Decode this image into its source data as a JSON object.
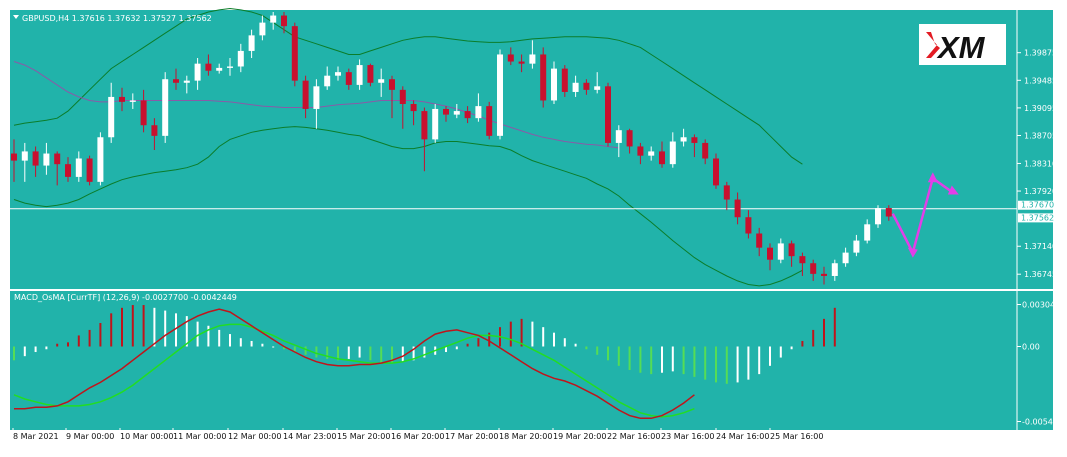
{
  "header": {
    "symbol_info": "GBPUSD,H4  1.37616 1.37632 1.37527 1.37562",
    "indicator_info": "MACD_OsMA [CurrTF] (12,26,9) -0.0027700 -0.0042449"
  },
  "brand": {
    "logo_text": "XM",
    "logo_color": "#e31b23"
  },
  "colors": {
    "background": "#21b3aa",
    "bull_candle": "#ffffff",
    "bear_candle": "#c8102e",
    "bollinger": "#0b7d2a",
    "moving_average": "#8a5aa8",
    "macd_line": "#c0141b",
    "signal_line": "#22dd22",
    "histogram_positive_rising": "#c0141b",
    "histogram_positive_falling": "#ffffff",
    "histogram_negative_falling": "#55dd55",
    "histogram_negative_rising": "#ffffff",
    "arrow": "#e23ee8"
  },
  "chart_data": [
    {
      "type": "candlestick",
      "symbol": "GBPUSD",
      "timeframe": "H4",
      "ylim": [
        1.3655,
        1.4045
      ],
      "y_ticks": [
        "1.39875",
        "1.39485",
        "1.39095",
        "1.38705",
        "1.38310",
        "1.37920",
        "1.37140",
        "1.36745"
      ],
      "price_tags": [
        "1.37670",
        "1.37562"
      ],
      "current_price_line": 1.3767,
      "x_ticks": [
        "8 Mar 2021",
        "9 Mar 00:00",
        "10 Mar 00:00",
        "11 Mar 00:00",
        "12 Mar 00:00",
        "14 Mar 23:00",
        "15 Mar 20:00",
        "16 Mar 20:00",
        "17 Mar 20:00",
        "18 Mar 20:00",
        "19 Mar 20:00",
        "22 Mar 16:00",
        "23 Mar 16:00",
        "24 Mar 16:00",
        "25 Mar 16:00"
      ],
      "candles": [
        [
          1.3845,
          1.3835,
          1.3865,
          1.3805
        ],
        [
          1.3835,
          1.3848,
          1.386,
          1.3805
        ],
        [
          1.3848,
          1.3828,
          1.3855,
          1.3812
        ],
        [
          1.3828,
          1.3845,
          1.386,
          1.3815
        ],
        [
          1.3845,
          1.383,
          1.3848,
          1.38
        ],
        [
          1.383,
          1.3812,
          1.384,
          1.3805
        ],
        [
          1.3812,
          1.3838,
          1.3848,
          1.3805
        ],
        [
          1.3838,
          1.3805,
          1.3842,
          1.38
        ],
        [
          1.3805,
          1.3868,
          1.3875,
          1.38
        ],
        [
          1.3868,
          1.3925,
          1.3945,
          1.386
        ],
        [
          1.3925,
          1.3918,
          1.3938,
          1.3905
        ],
        [
          1.3918,
          1.392,
          1.393,
          1.3908
        ],
        [
          1.392,
          1.3885,
          1.3935,
          1.3875
        ],
        [
          1.3885,
          1.387,
          1.3895,
          1.385
        ],
        [
          1.387,
          1.395,
          1.396,
          1.386
        ],
        [
          1.395,
          1.3945,
          1.3965,
          1.3935
        ],
        [
          1.3945,
          1.3948,
          1.3955,
          1.393
        ],
        [
          1.3948,
          1.3972,
          1.398,
          1.3935
        ],
        [
          1.3972,
          1.3962,
          1.3985,
          1.3955
        ],
        [
          1.3962,
          1.3966,
          1.3972,
          1.3958
        ],
        [
          1.3966,
          1.3968,
          1.398,
          1.3955
        ],
        [
          1.3968,
          1.399,
          1.4,
          1.396
        ],
        [
          1.399,
          1.4012,
          1.402,
          1.398
        ],
        [
          1.4012,
          1.403,
          1.404,
          1.4005
        ],
        [
          1.403,
          1.404,
          1.4045,
          1.402
        ],
        [
          1.404,
          1.4025,
          1.4045,
          1.4015
        ],
        [
          1.4025,
          1.3948,
          1.403,
          1.394
        ],
        [
          1.3948,
          1.3908,
          1.3955,
          1.3895
        ],
        [
          1.3908,
          1.394,
          1.395,
          1.388
        ],
        [
          1.394,
          1.3955,
          1.3968,
          1.3935
        ],
        [
          1.3955,
          1.396,
          1.3968,
          1.3948
        ],
        [
          1.396,
          1.3942,
          1.3965,
          1.3935
        ],
        [
          1.3942,
          1.397,
          1.3978,
          1.3935
        ],
        [
          1.397,
          1.3945,
          1.3972,
          1.394
        ],
        [
          1.3945,
          1.395,
          1.3965,
          1.3925
        ],
        [
          1.395,
          1.3935,
          1.3955,
          1.3895
        ],
        [
          1.3935,
          1.3915,
          1.394,
          1.388
        ],
        [
          1.3915,
          1.3905,
          1.392,
          1.3885
        ],
        [
          1.3905,
          1.3865,
          1.391,
          1.382
        ],
        [
          1.3865,
          1.3908,
          1.3915,
          1.386
        ],
        [
          1.3908,
          1.39,
          1.3912,
          1.389
        ],
        [
          1.39,
          1.3905,
          1.3915,
          1.3895
        ],
        [
          1.3905,
          1.3895,
          1.3912,
          1.3888
        ],
        [
          1.3895,
          1.3912,
          1.393,
          1.389
        ],
        [
          1.3912,
          1.387,
          1.3918,
          1.3865
        ],
        [
          1.387,
          1.3985,
          1.3992,
          1.3865
        ],
        [
          1.3985,
          1.3975,
          1.3995,
          1.397
        ],
        [
          1.3975,
          1.3972,
          1.3985,
          1.396
        ],
        [
          1.3972,
          1.3985,
          1.4005,
          1.3965
        ],
        [
          1.3985,
          1.392,
          1.3995,
          1.391
        ],
        [
          1.392,
          1.3965,
          1.3975,
          1.3915
        ],
        [
          1.3965,
          1.3932,
          1.397,
          1.3925
        ],
        [
          1.3932,
          1.3945,
          1.3955,
          1.3925
        ],
        [
          1.3945,
          1.3935,
          1.395,
          1.3928
        ],
        [
          1.3935,
          1.394,
          1.396,
          1.393
        ],
        [
          1.394,
          1.386,
          1.3945,
          1.3855
        ],
        [
          1.386,
          1.3878,
          1.3885,
          1.384
        ],
        [
          1.3878,
          1.3855,
          1.388,
          1.3845
        ],
        [
          1.3855,
          1.3842,
          1.386,
          1.383
        ],
        [
          1.3842,
          1.3848,
          1.3855,
          1.3835
        ],
        [
          1.3848,
          1.383,
          1.3862,
          1.3825
        ],
        [
          1.383,
          1.3862,
          1.3875,
          1.3825
        ],
        [
          1.3862,
          1.3868,
          1.388,
          1.3855
        ],
        [
          1.3868,
          1.386,
          1.3872,
          1.384
        ],
        [
          1.386,
          1.3838,
          1.3865,
          1.383
        ],
        [
          1.3838,
          1.38,
          1.3845,
          1.3795
        ],
        [
          1.38,
          1.378,
          1.3805,
          1.3765
        ],
        [
          1.378,
          1.3755,
          1.379,
          1.3745
        ],
        [
          1.3755,
          1.3732,
          1.3765,
          1.3725
        ],
        [
          1.3732,
          1.3712,
          1.374,
          1.37
        ],
        [
          1.3712,
          1.3695,
          1.3718,
          1.368
        ],
        [
          1.3695,
          1.3718,
          1.3725,
          1.369
        ],
        [
          1.3718,
          1.37,
          1.3722,
          1.3685
        ],
        [
          1.37,
          1.369,
          1.3705,
          1.3672
        ],
        [
          1.369,
          1.3675,
          1.3695,
          1.3665
        ],
        [
          1.3675,
          1.3672,
          1.3685,
          1.366
        ],
        [
          1.3672,
          1.369,
          1.3695,
          1.3665
        ],
        [
          1.369,
          1.3705,
          1.3712,
          1.3685
        ],
        [
          1.3705,
          1.3722,
          1.373,
          1.37
        ],
        [
          1.3722,
          1.3745,
          1.3752,
          1.3718
        ],
        [
          1.3745,
          1.3768,
          1.3772,
          1.374
        ],
        [
          1.3768,
          1.3756,
          1.3772,
          1.375
        ]
      ],
      "bollinger_upper": [
        1.3885,
        1.3888,
        1.389,
        1.3892,
        1.3895,
        1.3905,
        1.392,
        1.3935,
        1.395,
        1.3965,
        1.3975,
        1.3985,
        1.3995,
        1.4005,
        1.4015,
        1.4025,
        1.4035,
        1.404,
        1.4045,
        1.4048,
        1.405,
        1.4048,
        1.4045,
        1.404,
        1.403,
        1.402,
        1.401,
        1.4005,
        1.4,
        1.3995,
        1.399,
        1.3985,
        1.3985,
        1.399,
        1.3995,
        1.4,
        1.4005,
        1.4008,
        1.401,
        1.401,
        1.4008,
        1.4006,
        1.4004,
        1.4003,
        1.4002,
        1.4002,
        1.4003,
        1.4005,
        1.4007,
        1.4008,
        1.4009,
        1.401,
        1.401,
        1.401,
        1.4009,
        1.4008,
        1.4005,
        1.4,
        1.3995,
        1.3985,
        1.3975,
        1.3965,
        1.3955,
        1.3945,
        1.3935,
        1.3925,
        1.3915,
        1.3905,
        1.3895,
        1.3885,
        1.387,
        1.3855,
        1.384,
        1.383
      ],
      "bollinger_lower": [
        1.378,
        1.3775,
        1.3772,
        1.377,
        1.3772,
        1.3775,
        1.378,
        1.3788,
        1.3795,
        1.3802,
        1.3808,
        1.3812,
        1.3815,
        1.3818,
        1.382,
        1.3822,
        1.3825,
        1.383,
        1.384,
        1.3855,
        1.3865,
        1.387,
        1.3875,
        1.3878,
        1.388,
        1.3882,
        1.3883,
        1.3882,
        1.388,
        1.3878,
        1.3875,
        1.3872,
        1.387,
        1.3865,
        1.386,
        1.3855,
        1.3852,
        1.3852,
        1.3855,
        1.386,
        1.3862,
        1.3862,
        1.386,
        1.3858,
        1.3856,
        1.3855,
        1.385,
        1.3842,
        1.3835,
        1.383,
        1.3825,
        1.382,
        1.3815,
        1.381,
        1.3802,
        1.3795,
        1.3785,
        1.3772,
        1.376,
        1.3748,
        1.3735,
        1.3722,
        1.371,
        1.3698,
        1.3688,
        1.368,
        1.3672,
        1.3665,
        1.366,
        1.3658,
        1.366,
        1.3665,
        1.3672,
        1.368
      ],
      "moving_average": [
        1.3975,
        1.397,
        1.3962,
        1.3952,
        1.3942,
        1.3932,
        1.3925,
        1.392,
        1.3918,
        1.3918,
        1.392,
        1.392,
        1.392,
        1.392,
        1.392,
        1.392,
        1.392,
        1.392,
        1.392,
        1.3919,
        1.3918,
        1.3916,
        1.3914,
        1.3912,
        1.3911,
        1.391,
        1.391,
        1.391,
        1.391,
        1.3912,
        1.3914,
        1.3915,
        1.3916,
        1.3918,
        1.392,
        1.392,
        1.392,
        1.392,
        1.3918,
        1.3915,
        1.3912,
        1.3908,
        1.3903,
        1.3898,
        1.3892,
        1.3887,
        1.3882,
        1.3877,
        1.3872,
        1.3868,
        1.3865,
        1.3862,
        1.386,
        1.3858,
        1.3857,
        1.3855,
        1.3853
      ],
      "forecast_arrow": [
        [
          0,
          1.376
        ],
        [
          1,
          1.3705
        ],
        [
          2,
          1.381
        ],
        [
          3,
          1.379
        ]
      ]
    },
    {
      "type": "macd_osma",
      "name": "MACD_OsMA [CurrTF]",
      "params": "(12,26,9)",
      "ylim": [
        -0.0059,
        0.0038
      ],
      "y_ticks": [
        "0.00304",
        "0.00",
        "-0.00543"
      ],
      "histogram": [
        -0.001,
        -0.0007,
        -0.0004,
        -0.0002,
        0.0002,
        0.0003,
        0.0008,
        0.0012,
        0.0017,
        0.0024,
        0.0028,
        0.003,
        0.003,
        0.0028,
        0.0026,
        0.0024,
        0.0022,
        0.0018,
        0.0015,
        0.0012,
        0.0009,
        0.0006,
        0.0004,
        0.0002,
        0.0,
        -0.0002,
        -0.0004,
        -0.0006,
        -0.0008,
        -0.0009,
        -0.001,
        -0.0009,
        -0.0008,
        -0.001,
        -0.0012,
        -0.0012,
        -0.0011,
        -0.001,
        -0.0008,
        -0.0006,
        -0.0004,
        -0.0002,
        0.0002,
        0.0006,
        0.001,
        0.0014,
        0.0018,
        0.002,
        0.0018,
        0.0014,
        0.001,
        0.0006,
        0.0002,
        -0.0002,
        -0.0006,
        -0.001,
        -0.0014,
        -0.0017,
        -0.0019,
        -0.002,
        -0.0019,
        -0.0018,
        -0.002,
        -0.0022,
        -0.0024,
        -0.0026,
        -0.0027,
        -0.0026,
        -0.0024,
        -0.002,
        -0.0014,
        -0.0008,
        -0.0002,
        0.0004,
        0.0012,
        0.002,
        0.0028
      ],
      "macd_line": [
        -0.0045,
        -0.0045,
        -0.0044,
        -0.0044,
        -0.0043,
        -0.004,
        -0.0035,
        -0.003,
        -0.0026,
        -0.0021,
        -0.0016,
        -0.001,
        -0.0004,
        0.0002,
        0.0008,
        0.0013,
        0.0018,
        0.0022,
        0.0025,
        0.0027,
        0.0025,
        0.002,
        0.0015,
        0.001,
        0.0005,
        0.0,
        -0.0004,
        -0.0008,
        -0.0011,
        -0.0013,
        -0.0014,
        -0.0014,
        -0.0013,
        -0.0013,
        -0.0012,
        -0.001,
        -0.0007,
        -0.0002,
        0.0004,
        0.0009,
        0.0011,
        0.0012,
        0.001,
        0.0008,
        0.0004,
        -0.0001,
        -0.0006,
        -0.0011,
        -0.0016,
        -0.002,
        -0.0023,
        -0.0025,
        -0.0028,
        -0.0032,
        -0.0036,
        -0.0041,
        -0.0046,
        -0.005,
        -0.0052,
        -0.0052,
        -0.005,
        -0.0046,
        -0.0041,
        -0.0035
      ],
      "signal_line": [
        -0.0035,
        -0.0038,
        -0.004,
        -0.0042,
        -0.0043,
        -0.0043,
        -0.0043,
        -0.0042,
        -0.004,
        -0.0037,
        -0.0033,
        -0.0028,
        -0.0022,
        -0.0016,
        -0.001,
        -0.0004,
        0.0002,
        0.0008,
        0.0012,
        0.0015,
        0.0016,
        0.0016,
        0.0014,
        0.0011,
        0.0008,
        0.0004,
        0.0001,
        -0.0002,
        -0.0005,
        -0.0007,
        -0.0009,
        -0.001,
        -0.0011,
        -0.0012,
        -0.0012,
        -0.0012,
        -0.0011,
        -0.0009,
        -0.0006,
        -0.0003,
        0.0,
        0.0003,
        0.0006,
        0.0008,
        0.0008,
        0.0007,
        0.0005,
        0.0002,
        -0.0002,
        -0.0006,
        -0.001,
        -0.0015,
        -0.002,
        -0.0025,
        -0.003,
        -0.0035,
        -0.004,
        -0.0044,
        -0.0048,
        -0.005,
        -0.0051,
        -0.005,
        -0.0048,
        -0.0045
      ]
    }
  ]
}
